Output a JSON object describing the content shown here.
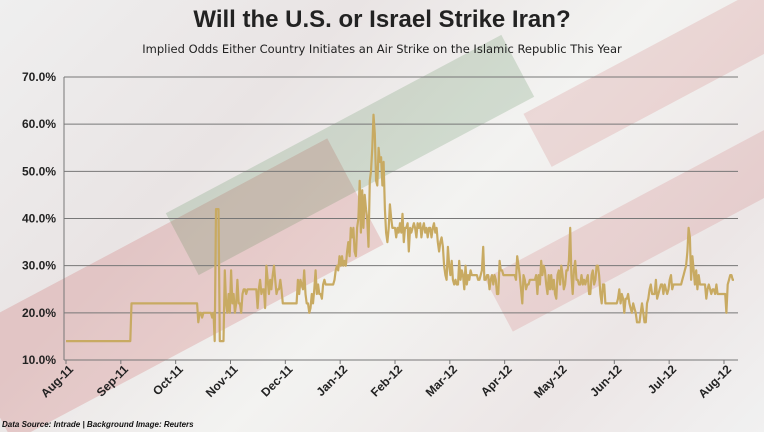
{
  "title": "Will the U.S. or Israel Strike Iran?",
  "subtitle": "Implied Odds Either Country Initiates an Air Strike on the Islamic Republic This Year",
  "source": "Data Source: Intrade | Background Image: Reuters",
  "chart_data": {
    "type": "line",
    "title": "Will the U.S. or Israel Strike Iran?",
    "subtitle": "Implied Odds Either Country Initiates an Air Strike on the Islamic Republic This Year",
    "xlabel": "",
    "ylabel": "",
    "ylim": [
      10,
      70
    ],
    "y_ticks": [
      10,
      20,
      30,
      40,
      50,
      60,
      70
    ],
    "y_tick_labels": [
      "10.0%",
      "20.0%",
      "30.0%",
      "40.0%",
      "50.0%",
      "60.0%",
      "70.0%"
    ],
    "x_tick_labels": [
      "Aug-11",
      "Sep-11",
      "Oct-11",
      "Nov-11",
      "Dec-11",
      "Jan-12",
      "Feb-12",
      "Mar-12",
      "Apr-12",
      "May-12",
      "Jun-12",
      "Jul-12",
      "Aug-12"
    ],
    "grid": true,
    "line_color": "#c8aa62",
    "series": [
      {
        "values_percent_by_day": [
          14,
          14,
          14,
          14,
          14,
          14,
          14,
          14,
          14,
          14,
          14,
          14,
          14,
          14,
          14,
          14,
          14,
          14,
          14,
          14,
          14,
          14,
          14,
          14,
          14,
          14,
          14,
          14,
          14,
          14,
          14,
          14,
          14,
          14,
          14,
          14,
          14,
          14,
          14,
          14,
          14,
          14,
          14,
          14,
          14,
          14,
          14,
          14,
          14,
          14,
          14,
          14,
          22,
          22,
          22,
          22,
          22,
          22,
          22,
          22,
          22,
          22,
          22,
          22,
          22,
          22,
          22,
          22,
          22,
          22,
          22,
          22,
          22,
          22,
          22,
          22,
          22,
          22,
          22,
          22,
          22,
          22,
          22,
          22,
          22,
          22,
          22,
          22,
          22,
          22,
          22,
          22,
          22,
          22,
          22,
          22,
          22,
          22,
          22,
          22,
          22,
          22,
          22,
          22,
          22,
          18,
          20,
          20,
          19,
          20,
          20,
          20,
          20,
          20,
          20,
          20,
          19,
          20,
          14,
          42,
          42,
          42,
          14,
          14,
          14,
          14,
          29,
          22,
          20,
          24,
          20,
          29,
          22,
          24,
          20,
          22,
          27,
          22,
          22,
          20,
          24,
          25,
          25,
          24,
          25,
          25,
          25,
          25,
          25,
          25,
          25,
          25,
          21,
          25,
          27,
          24,
          25,
          25,
          21,
          30,
          27,
          24,
          27,
          25,
          28,
          30,
          27,
          24,
          25,
          25,
          27,
          25,
          22,
          22,
          22,
          22,
          22,
          22,
          22,
          22,
          22,
          22,
          22,
          22,
          27,
          24,
          27,
          26,
          25,
          29,
          24,
          22,
          22,
          20,
          21,
          24,
          22,
          25,
          29,
          24,
          26,
          24,
          24,
          23,
          26,
          27,
          26,
          26,
          26,
          26,
          26,
          26,
          26,
          27,
          29,
          30,
          29,
          32,
          30,
          32,
          30,
          31,
          30,
          33,
          35,
          32,
          38,
          36,
          38,
          33,
          32,
          38,
          40,
          48,
          37,
          46,
          38,
          45,
          42,
          40,
          34,
          48,
          50,
          55,
          62,
          58,
          48,
          47,
          55,
          52,
          53,
          47,
          52,
          42,
          37,
          35,
          38,
          43,
          40,
          38,
          38,
          38,
          36,
          38,
          37,
          39,
          37,
          41,
          35,
          38,
          38,
          39,
          33,
          38,
          37,
          38,
          39,
          38,
          36,
          39,
          38,
          39,
          36,
          38,
          39,
          37,
          38,
          36,
          38,
          38,
          36,
          38,
          39,
          37,
          38,
          35,
          33,
          35,
          36,
          34,
          30,
          28,
          27,
          34,
          30,
          28,
          31,
          27,
          26,
          27,
          26,
          26,
          31,
          27,
          29,
          28,
          25,
          30,
          26,
          28,
          27,
          29,
          28,
          28,
          28,
          28,
          28,
          27,
          27,
          28,
          29,
          34,
          27,
          27,
          28,
          28,
          25,
          27,
          28,
          26,
          28,
          27,
          24,
          24,
          31,
          29,
          29,
          28,
          28,
          28,
          28,
          28,
          28,
          28,
          28,
          28,
          28,
          27,
          32,
          30,
          28,
          25,
          22,
          28,
          27,
          25,
          26,
          26,
          27,
          27,
          27,
          27,
          27,
          28,
          24,
          28,
          26,
          31,
          28,
          30,
          29,
          26,
          24,
          28,
          25,
          28,
          25,
          27,
          24,
          23,
          28,
          29,
          26,
          30,
          28,
          25,
          26,
          29,
          29,
          31,
          38,
          28,
          24,
          29,
          31,
          27,
          27,
          26,
          26,
          28,
          26,
          27,
          26,
          27,
          28,
          24,
          24,
          28,
          29,
          26,
          27,
          30,
          30,
          28,
          24,
          22,
          26,
          26,
          22,
          22,
          22,
          22,
          22,
          22,
          22,
          22,
          22,
          22,
          23,
          25,
          22,
          24,
          23,
          20,
          23,
          23,
          24,
          22,
          21,
          20,
          22,
          21,
          20,
          18,
          18,
          18,
          20,
          22,
          20,
          18,
          18,
          22,
          23,
          25,
          26,
          24,
          24,
          24,
          27,
          23,
          24,
          25,
          26,
          26,
          24,
          26,
          25,
          24,
          25,
          27,
          28,
          25,
          26,
          26,
          26,
          26,
          26,
          26,
          26,
          27,
          28,
          29,
          30,
          33,
          38,
          36,
          27,
          32,
          29,
          26,
          29,
          25,
          28,
          26,
          26,
          26,
          26,
          26,
          23,
          25,
          26,
          25,
          24,
          25,
          25,
          24,
          26,
          24,
          24,
          24,
          24,
          24,
          24,
          24,
          20,
          26,
          27,
          28,
          28,
          27,
          27
        ]
      }
    ]
  }
}
